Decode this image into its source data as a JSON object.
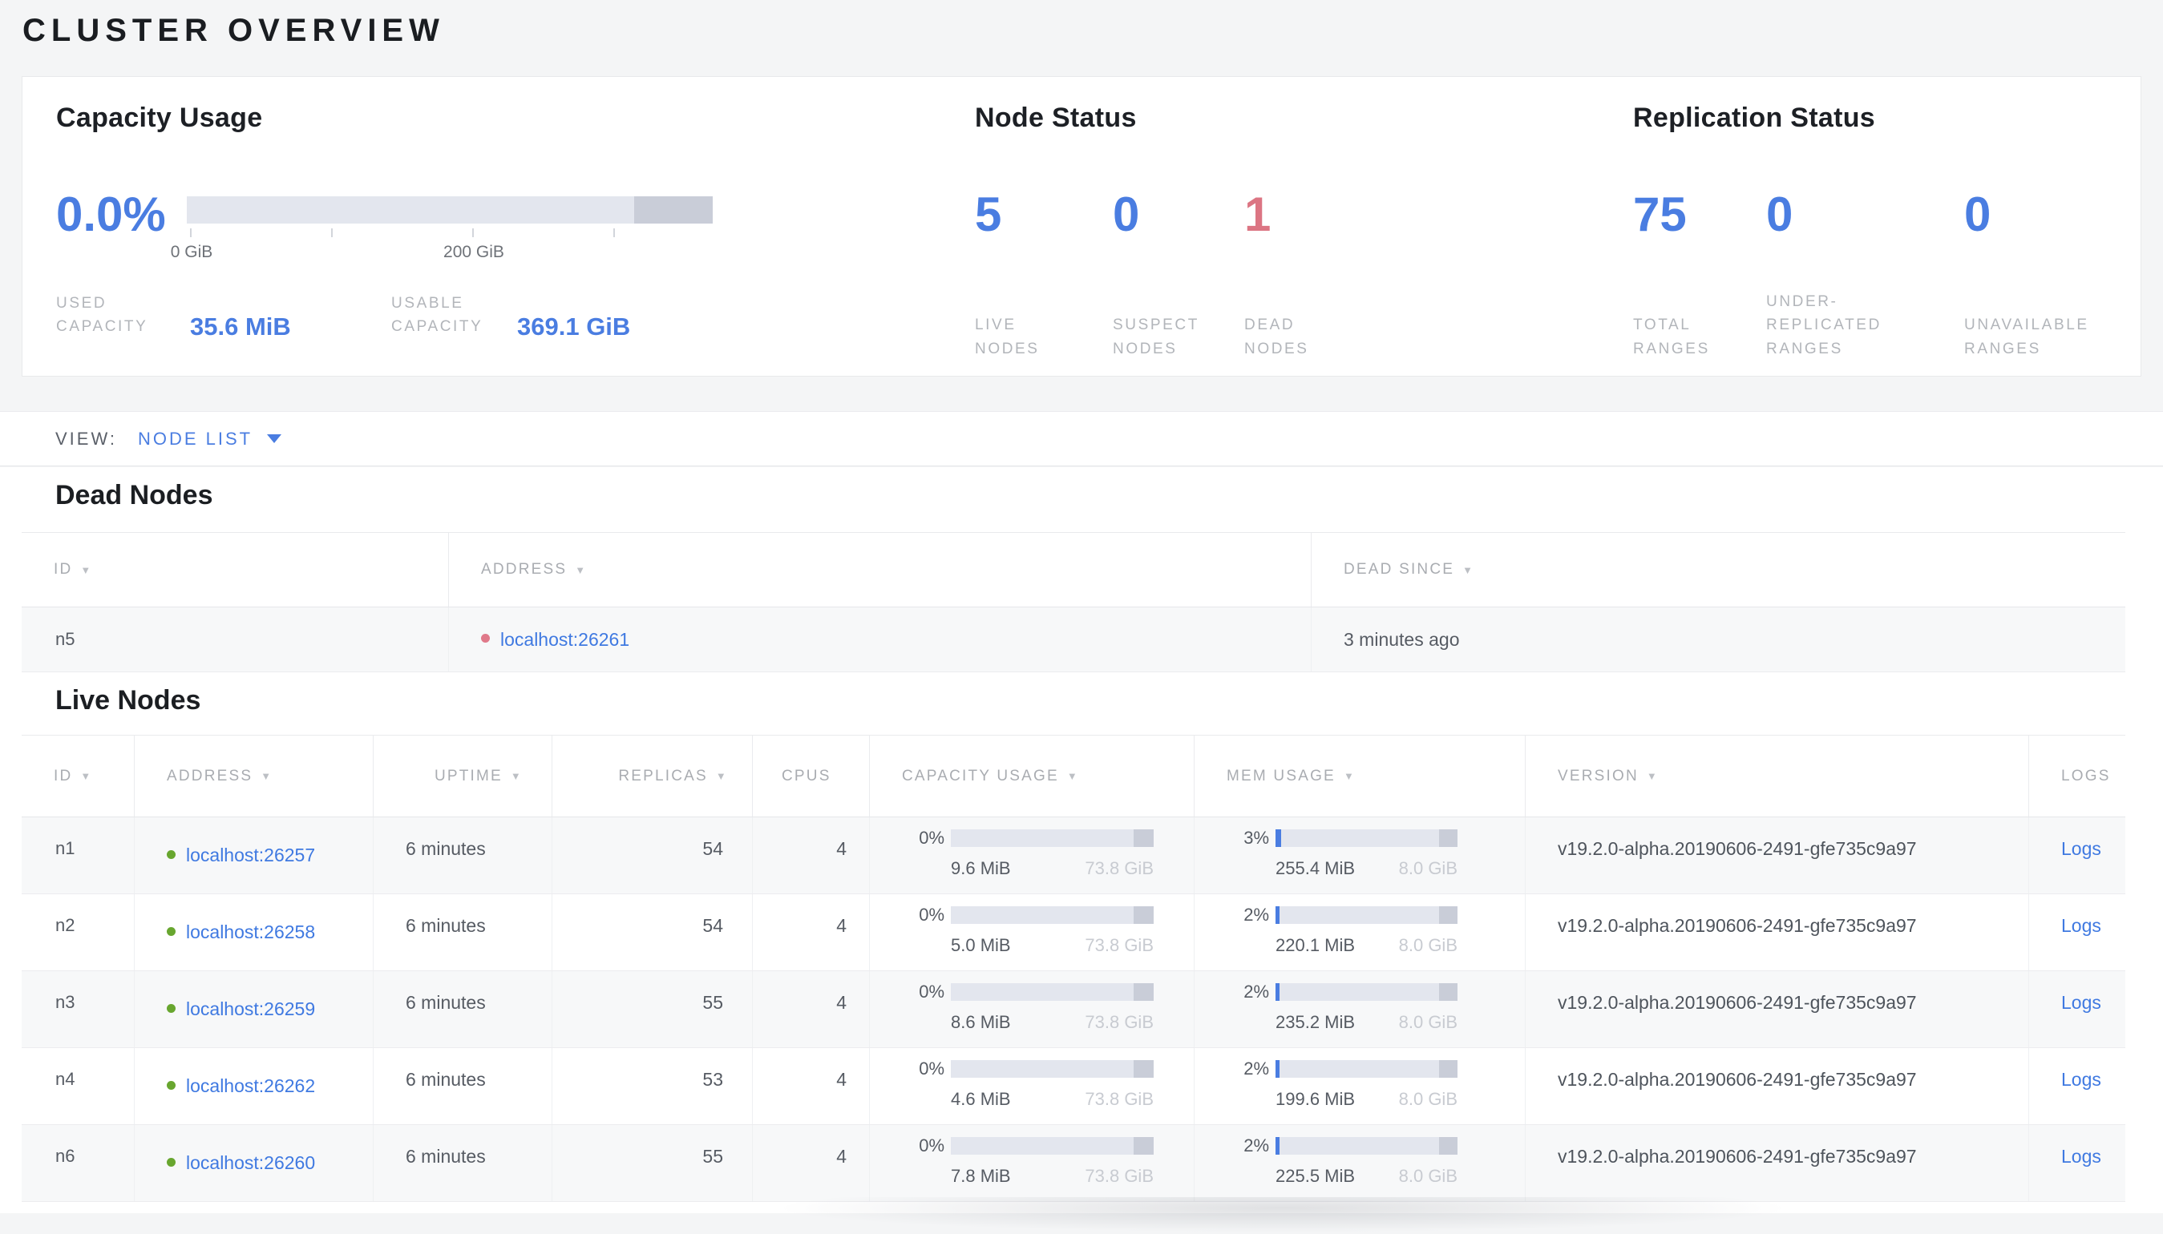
{
  "colors": {
    "accent_blue": "#4a7de1",
    "danger_red": "#dc7583",
    "link_blue": "#3f79e1",
    "live_dot_green": "#68a62f",
    "dead_dot_red": "#e0798a"
  },
  "page_title": "CLUSTER OVERVIEW",
  "summary": {
    "capacity": {
      "title": "Capacity Usage",
      "percent_label": "0.0%",
      "percent_value": 0,
      "axis_tick_labels": [
        "0 GiB",
        "200 GiB"
      ],
      "used_label": "USED CAPACITY",
      "used_value": "35.6 MiB",
      "usable_label": "USABLE CAPACITY",
      "usable_value": "369.1 GiB"
    },
    "node_status": {
      "title": "Node Status",
      "stats": [
        {
          "value": "5",
          "label": "LIVE NODES",
          "danger": false
        },
        {
          "value": "0",
          "label": "SUSPECT NODES",
          "danger": false
        },
        {
          "value": "1",
          "label": "DEAD NODES",
          "danger": true
        }
      ]
    },
    "replication": {
      "title": "Replication Status",
      "stats": [
        {
          "value": "75",
          "label": "TOTAL RANGES"
        },
        {
          "value": "0",
          "label": "UNDER-REPLICATED RANGES"
        },
        {
          "value": "0",
          "label": "UNAVAILABLE RANGES"
        }
      ]
    }
  },
  "view_bar": {
    "label": "VIEW:",
    "selected": "NODE LIST"
  },
  "dead_nodes": {
    "heading": "Dead Nodes",
    "columns": [
      {
        "label": "ID",
        "sortable": true
      },
      {
        "label": "ADDRESS",
        "sortable": true
      },
      {
        "label": "DEAD SINCE",
        "sortable": true
      }
    ],
    "rows": [
      {
        "id": "n5",
        "address": "localhost:26261",
        "dead_since": "3 minutes ago"
      }
    ]
  },
  "live_nodes": {
    "heading": "Live Nodes",
    "columns": [
      {
        "label": "ID",
        "sortable": true
      },
      {
        "label": "ADDRESS",
        "sortable": true
      },
      {
        "label": "UPTIME",
        "sortable": true
      },
      {
        "label": "REPLICAS",
        "sortable": true
      },
      {
        "label": "CPUS",
        "sortable": false
      },
      {
        "label": "CAPACITY USAGE",
        "sortable": true
      },
      {
        "label": "MEM USAGE",
        "sortable": true
      },
      {
        "label": "VERSION",
        "sortable": true
      },
      {
        "label": "LOGS",
        "sortable": false
      }
    ],
    "rows": [
      {
        "id": "n1",
        "address": "localhost:26257",
        "uptime": "6 minutes",
        "replicas": "54",
        "cpus": "4",
        "capacity_pct": 0,
        "capacity_pct_label": "0%",
        "capacity_used": "9.6 MiB",
        "capacity_total": "73.8 GiB",
        "mem_pct": 3,
        "mem_pct_label": "3%",
        "mem_used": "255.4 MiB",
        "mem_total": "8.0 GiB",
        "version": "v19.2.0-alpha.20190606-2491-gfe735c9a97",
        "logs_label": "Logs"
      },
      {
        "id": "n2",
        "address": "localhost:26258",
        "uptime": "6 minutes",
        "replicas": "54",
        "cpus": "4",
        "capacity_pct": 0,
        "capacity_pct_label": "0%",
        "capacity_used": "5.0 MiB",
        "capacity_total": "73.8 GiB",
        "mem_pct": 2,
        "mem_pct_label": "2%",
        "mem_used": "220.1 MiB",
        "mem_total": "8.0 GiB",
        "version": "v19.2.0-alpha.20190606-2491-gfe735c9a97",
        "logs_label": "Logs"
      },
      {
        "id": "n3",
        "address": "localhost:26259",
        "uptime": "6 minutes",
        "replicas": "55",
        "cpus": "4",
        "capacity_pct": 0,
        "capacity_pct_label": "0%",
        "capacity_used": "8.6 MiB",
        "capacity_total": "73.8 GiB",
        "mem_pct": 2,
        "mem_pct_label": "2%",
        "mem_used": "235.2 MiB",
        "mem_total": "8.0 GiB",
        "version": "v19.2.0-alpha.20190606-2491-gfe735c9a97",
        "logs_label": "Logs"
      },
      {
        "id": "n4",
        "address": "localhost:26262",
        "uptime": "6 minutes",
        "replicas": "53",
        "cpus": "4",
        "capacity_pct": 0,
        "capacity_pct_label": "0%",
        "capacity_used": "4.6 MiB",
        "capacity_total": "73.8 GiB",
        "mem_pct": 2,
        "mem_pct_label": "2%",
        "mem_used": "199.6 MiB",
        "mem_total": "8.0 GiB",
        "version": "v19.2.0-alpha.20190606-2491-gfe735c9a97",
        "logs_label": "Logs"
      },
      {
        "id": "n6",
        "address": "localhost:26260",
        "uptime": "6 minutes",
        "replicas": "55",
        "cpus": "4",
        "capacity_pct": 0,
        "capacity_pct_label": "0%",
        "capacity_used": "7.8 MiB",
        "capacity_total": "73.8 GiB",
        "mem_pct": 2,
        "mem_pct_label": "2%",
        "mem_used": "225.5 MiB",
        "mem_total": "8.0 GiB",
        "version": "v19.2.0-alpha.20190606-2491-gfe735c9a97",
        "logs_label": "Logs"
      }
    ]
  }
}
